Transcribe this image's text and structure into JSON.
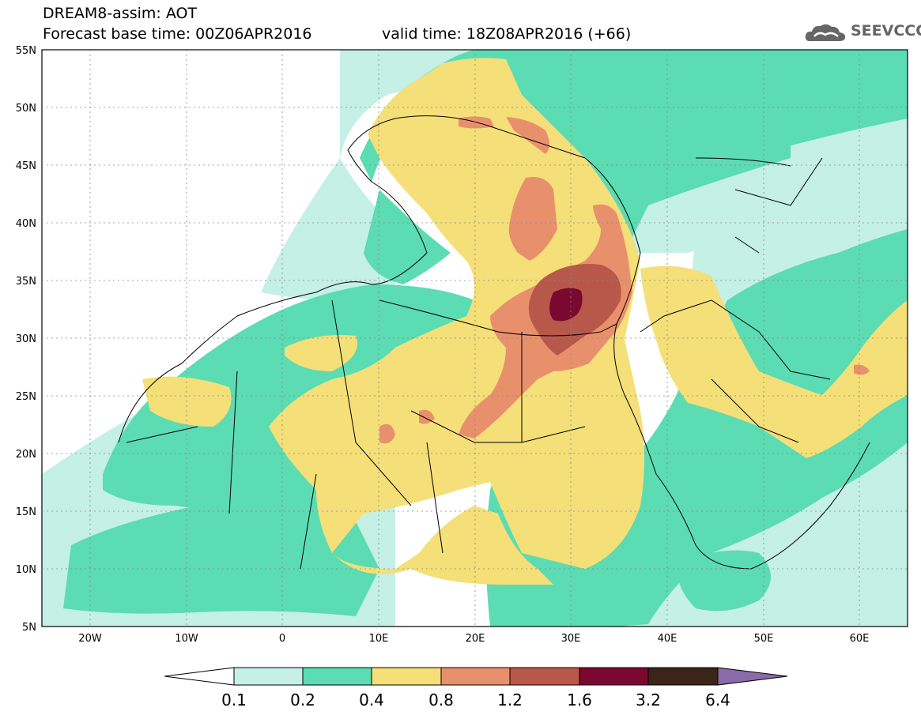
{
  "header": {
    "title": "DREAM8-assim: AOT",
    "base_time": "Forecast base time: 00Z06APR2016",
    "valid_time": "valid time: 18Z08APR2016 (+66)"
  },
  "logo": {
    "text": "SEEVCCC",
    "icon": "cloud-icon"
  },
  "map": {
    "lat_ticks": [
      "55N",
      "50N",
      "45N",
      "40N",
      "35N",
      "30N",
      "25N",
      "20N",
      "15N",
      "10N",
      "5N"
    ],
    "lon_ticks": [
      "20W",
      "10W",
      "0",
      "10E",
      "20E",
      "30E",
      "40E",
      "50E",
      "60E"
    ],
    "lat_range": [
      5,
      55
    ],
    "lon_range": [
      -25,
      65
    ]
  },
  "colorbar": {
    "labels": [
      "0.1",
      "0.2",
      "0.4",
      "0.8",
      "1.2",
      "1.6",
      "3.2",
      "6.4"
    ],
    "colors": [
      "#ffffff",
      "#c4f0e6",
      "#5cdcb2",
      "#f5df78",
      "#e8906c",
      "#b8584a",
      "#7a0830",
      "#3c2516",
      "#8a6aa8"
    ]
  },
  "levels": {
    "c1": "#c4f0e6",
    "c2": "#5cdcb2",
    "c3": "#f5df78",
    "c4": "#e8906c",
    "c5": "#b8584a",
    "c6": "#7a0830"
  }
}
